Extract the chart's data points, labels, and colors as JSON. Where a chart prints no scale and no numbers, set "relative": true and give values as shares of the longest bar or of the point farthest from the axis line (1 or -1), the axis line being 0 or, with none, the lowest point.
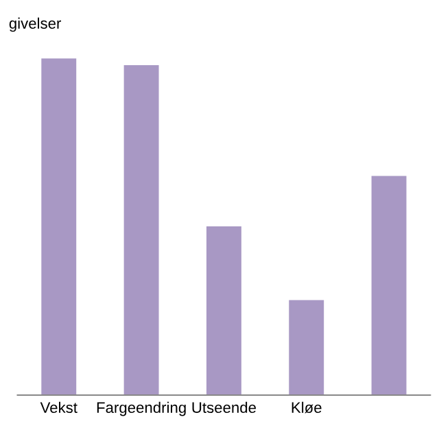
{
  "chart_data": {
    "type": "bar",
    "title": "givelser",
    "relative": true,
    "categories": [
      "Vekst",
      "Fargeendring",
      "Utseende",
      "Kløe",
      null
    ],
    "values": [
      1,
      0.98,
      0.5,
      0.28,
      0.65
    ],
    "color": "#a898c4",
    "grid": false,
    "legend": false
  }
}
